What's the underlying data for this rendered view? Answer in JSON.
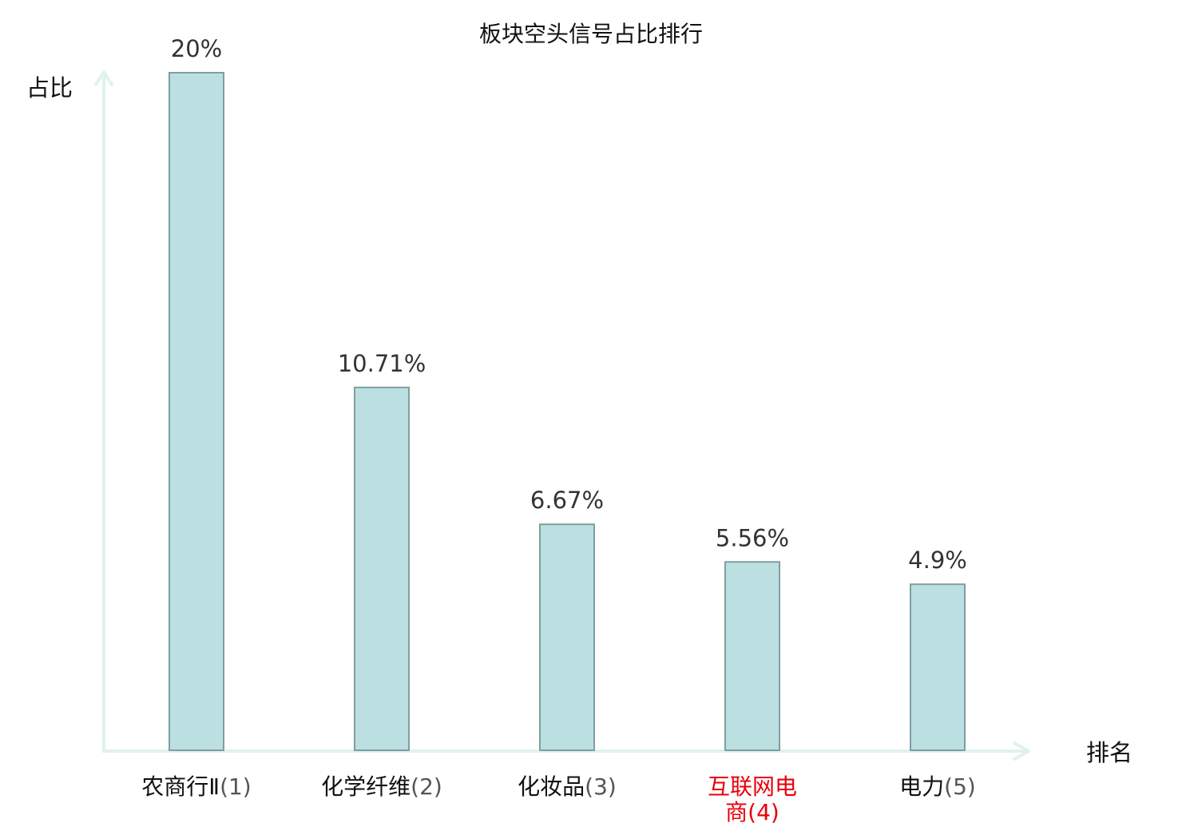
{
  "chart_data": {
    "type": "bar",
    "title": "板块空头信号占比排行",
    "xlabel": "排名",
    "ylabel": "占比",
    "categories": [
      {
        "name": "农商行Ⅱ",
        "rank": "(1)",
        "highlight": false
      },
      {
        "name": "化学纤维",
        "rank": "(2)",
        "highlight": false
      },
      {
        "name": "化妆品",
        "rank": "(3)",
        "highlight": false
      },
      {
        "name": "互联网电商",
        "rank": "(4)",
        "highlight": true
      },
      {
        "name": "电力",
        "rank": "(5)",
        "highlight": false
      }
    ],
    "values": [
      20,
      10.71,
      6.67,
      5.56,
      4.9
    ],
    "value_labels": [
      "20%",
      "10.71%",
      "6.67%",
      "5.56%",
      "4.9%"
    ],
    "ylim": [
      0,
      20
    ],
    "grid": false,
    "legend": "none"
  },
  "colors": {
    "bar_fill": "#bce0e2",
    "bar_stroke": "#7f9e9f",
    "axis": "#e0f2ef",
    "highlight_text": "#e8000b",
    "normal_text": "#111111",
    "rank_text": "#555555"
  }
}
